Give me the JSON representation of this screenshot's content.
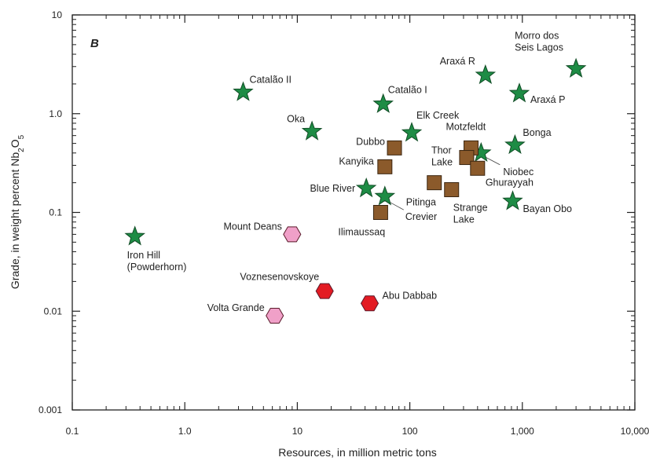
{
  "chart_data": {
    "type": "scatter",
    "panel_label": "B",
    "xlabel": "Resources, in million metric tons",
    "ylabel_parts": [
      "Grade, in weight percent Nb",
      "2",
      "O",
      "5"
    ],
    "x_scale": "log",
    "y_scale": "log",
    "xlim": [
      0.1,
      10000
    ],
    "ylim": [
      0.001,
      10
    ],
    "x_ticks": [
      0.1,
      1,
      10,
      100,
      1000,
      10000
    ],
    "x_tick_labels": [
      "0.1",
      "1.0",
      "10",
      "100",
      "1,000",
      "10,000"
    ],
    "y_ticks": [
      0.001,
      0.01,
      0.1,
      1,
      10
    ],
    "y_tick_labels": [
      "0.001",
      "0.01",
      "0.1",
      "1.0",
      "10"
    ],
    "grid": false,
    "colors": {
      "star": "#1e8c45",
      "square": "#8b5a2b",
      "hexagon_red": "#e31b23",
      "hexagon_pink": "#f0a0c8"
    },
    "points": [
      {
        "label": "Iron Hill (Powderhorn)",
        "label_lines": [
          "Iron Hill",
          "(Powderhorn)"
        ],
        "x": 0.36,
        "y": 0.057,
        "marker": "star"
      },
      {
        "label": "Catalão II",
        "label_lines": [
          "Catalão II"
        ],
        "x": 3.3,
        "y": 1.65,
        "marker": "star"
      },
      {
        "label": "Oka",
        "label_lines": [
          "Oka"
        ],
        "x": 13.5,
        "y": 0.66,
        "marker": "star"
      },
      {
        "label": "Catalão I",
        "label_lines": [
          "Catalão I"
        ],
        "x": 58,
        "y": 1.25,
        "marker": "star"
      },
      {
        "label": "Elk Creek",
        "label_lines": [
          "Elk Creek"
        ],
        "x": 104,
        "y": 0.64,
        "marker": "star"
      },
      {
        "label": "Araxá R",
        "label_lines": [
          "Araxá R"
        ],
        "x": 470,
        "y": 2.45,
        "marker": "star"
      },
      {
        "label": "Araxá P",
        "label_lines": [
          "Araxá P"
        ],
        "x": 940,
        "y": 1.6,
        "marker": "star"
      },
      {
        "label": "Morro dos Seis Lagos",
        "label_lines": [
          "Morro dos",
          "Seis Lagos"
        ],
        "x": 3000,
        "y": 2.85,
        "marker": "star"
      },
      {
        "label": "Bonga",
        "label_lines": [
          "Bonga"
        ],
        "x": 860,
        "y": 0.48,
        "marker": "star"
      },
      {
        "label": "Niobec",
        "label_lines": [
          "Niobec"
        ],
        "x": 430,
        "y": 0.4,
        "marker": "star"
      },
      {
        "label": "Blue River",
        "label_lines": [
          "Blue River"
        ],
        "x": 41,
        "y": 0.175,
        "marker": "star"
      },
      {
        "label": "Crevier",
        "label_lines": [
          "Crevier"
        ],
        "x": 60,
        "y": 0.145,
        "marker": "star"
      },
      {
        "label": "Bayan Obo",
        "label_lines": [
          "Bayan Obo"
        ],
        "x": 820,
        "y": 0.13,
        "marker": "star"
      },
      {
        "label": "Dubbo",
        "label_lines": [
          "Dubbo"
        ],
        "x": 73,
        "y": 0.45,
        "marker": "square"
      },
      {
        "label": "Kanyika",
        "label_lines": [
          "Kanyika"
        ],
        "x": 60,
        "y": 0.29,
        "marker": "square"
      },
      {
        "label": "Motzfeldt",
        "label_lines": [
          "Motzfeldt"
        ],
        "x": 350,
        "y": 0.45,
        "marker": "square"
      },
      {
        "label": "Thor Lake",
        "label_lines": [
          "Thor",
          "Lake"
        ],
        "x": 320,
        "y": 0.36,
        "marker": "square"
      },
      {
        "label": "Ghurayyah",
        "label_lines": [
          "Ghurayyah"
        ],
        "x": 400,
        "y": 0.28,
        "marker": "square"
      },
      {
        "label": "Pitinga",
        "label_lines": [
          "Pitinga"
        ],
        "x": 165,
        "y": 0.2,
        "marker": "square"
      },
      {
        "label": "Strange Lake",
        "label_lines": [
          "Strange",
          "Lake"
        ],
        "x": 235,
        "y": 0.17,
        "marker": "square"
      },
      {
        "label": "Ilimaussaq",
        "label_lines": [
          "Ilimaussaq"
        ],
        "x": 55,
        "y": 0.1,
        "marker": "square"
      },
      {
        "label": "Mount Deans",
        "label_lines": [
          "Mount Deans"
        ],
        "x": 9,
        "y": 0.06,
        "marker": "hexagon_pink"
      },
      {
        "label": "Volta Grande",
        "label_lines": [
          "Volta Grande"
        ],
        "x": 6.3,
        "y": 0.009,
        "marker": "hexagon_pink"
      },
      {
        "label": "Voznesenovskoye",
        "label_lines": [
          "Voznesenovskoye"
        ],
        "x": 17.5,
        "y": 0.016,
        "marker": "hexagon_red"
      },
      {
        "label": "Abu Dabbab",
        "label_lines": [
          "Abu Dabbab"
        ],
        "x": 44,
        "y": 0.012,
        "marker": "hexagon_red"
      }
    ]
  }
}
